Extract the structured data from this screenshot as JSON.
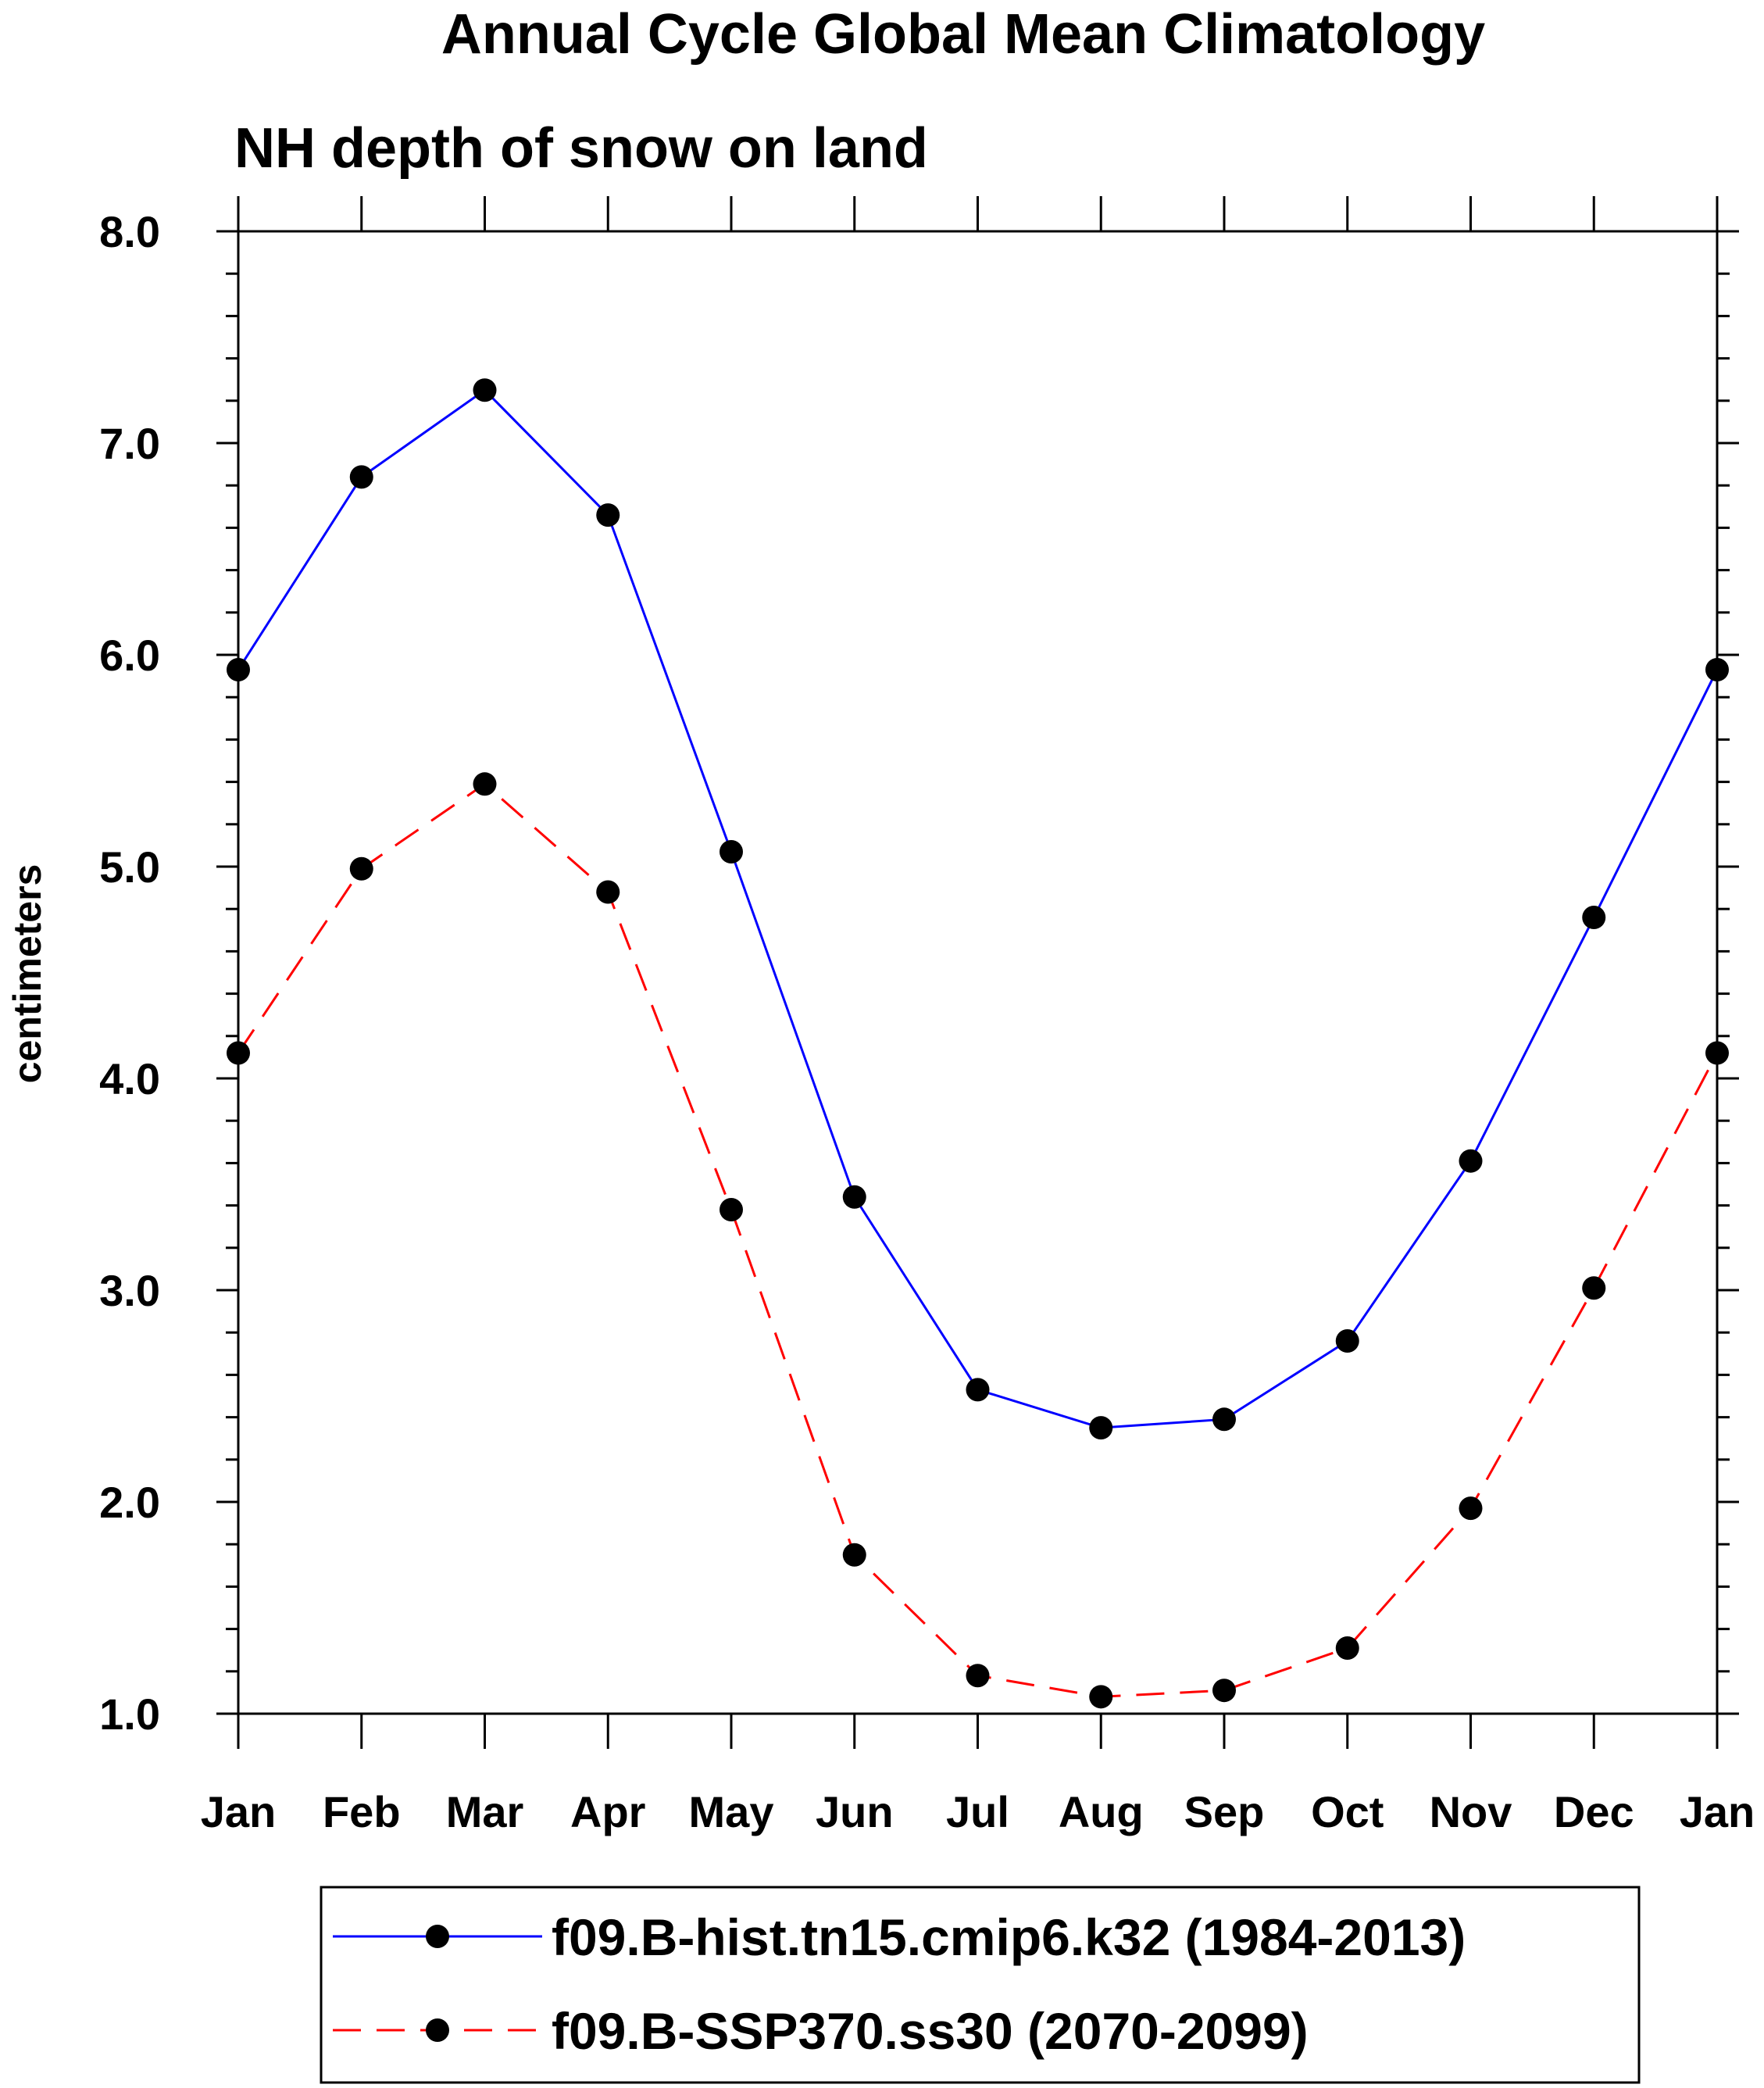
{
  "chart_data": {
    "type": "line",
    "title": "Annual Cycle Global Mean Climatology",
    "subtitle": "NH depth of snow on land",
    "xlabel": "",
    "ylabel": "centimeters",
    "categories": [
      "Jan",
      "Feb",
      "Mar",
      "Apr",
      "May",
      "Jun",
      "Jul",
      "Aug",
      "Sep",
      "Oct",
      "Nov",
      "Dec",
      "Jan"
    ],
    "ylim": [
      1.0,
      8.0
    ],
    "yticks": [
      "1.0",
      "2.0",
      "3.0",
      "4.0",
      "5.0",
      "6.0",
      "7.0",
      "8.0"
    ],
    "grid": false,
    "legend_position": "bottom",
    "series": [
      {
        "name": "f09.B-hist.tn15.cmip6.k32 (1984-2013)",
        "color": "#0000ff",
        "line_style": "solid",
        "marker": "filled-circle",
        "values": [
          5.93,
          6.84,
          7.25,
          6.66,
          5.07,
          3.44,
          2.53,
          2.35,
          2.39,
          2.76,
          3.61,
          4.76,
          5.93
        ]
      },
      {
        "name": "f09.B-SSP370.ss30 (2070-2099)",
        "color": "#ff0000",
        "line_style": "dashed",
        "marker": "filled-circle",
        "values": [
          4.12,
          4.99,
          5.39,
          4.88,
          3.38,
          1.75,
          1.18,
          1.08,
          1.11,
          1.31,
          1.97,
          3.01,
          4.12
        ]
      }
    ]
  }
}
